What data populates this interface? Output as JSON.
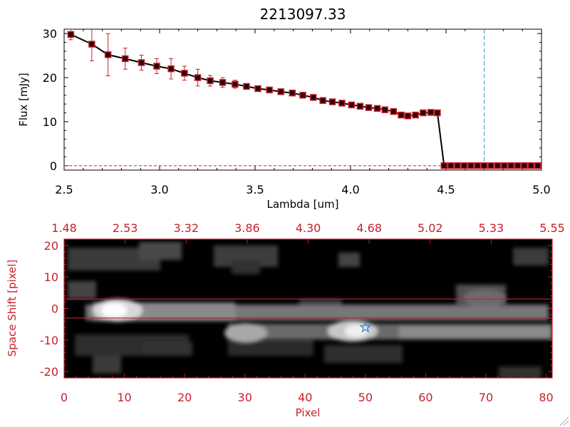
{
  "chart_data": [
    {
      "type": "line",
      "title": "2213097.33",
      "xlabel": "Lambda [um]",
      "ylabel": "Flux [mJy]",
      "xlim": [
        2.5,
        5.0
      ],
      "ylim": [
        -1,
        31
      ],
      "xticks": [
        "2.5",
        "3.0",
        "3.5",
        "4.0",
        "4.5",
        "5.0"
      ],
      "yticks": [
        "0",
        "10",
        "20",
        "30"
      ],
      "series": [
        {
          "name": "flux",
          "x": [
            2.535,
            2.645,
            2.73,
            2.82,
            2.905,
            2.985,
            3.06,
            3.13,
            3.2,
            3.265,
            3.33,
            3.395,
            3.455,
            3.515,
            3.575,
            3.635,
            3.695,
            3.75,
            3.805,
            3.855,
            3.905,
            3.955,
            4.005,
            4.05,
            4.095,
            4.14,
            4.18,
            4.225,
            4.265,
            4.3,
            4.34,
            4.38,
            4.42,
            4.455,
            4.49,
            4.525,
            4.56,
            4.595,
            4.63,
            4.665,
            4.7,
            4.735,
            4.77,
            4.805,
            4.84,
            4.875,
            4.91,
            4.945,
            4.98
          ],
          "y": [
            29.8,
            27.6,
            25.2,
            24.3,
            23.4,
            22.6,
            22.0,
            21.0,
            20.0,
            19.3,
            18.9,
            18.5,
            18.0,
            17.5,
            17.2,
            16.8,
            16.5,
            16.0,
            15.5,
            14.8,
            14.5,
            14.2,
            13.8,
            13.5,
            13.2,
            13.0,
            12.7,
            12.3,
            11.5,
            11.3,
            11.5,
            12.0,
            12.1,
            12.0,
            0,
            0,
            0,
            0,
            0,
            0,
            0,
            0,
            0,
            0,
            0,
            0,
            0,
            0,
            0
          ],
          "yerr": [
            1.2,
            3.8,
            4.8,
            2.4,
            1.7,
            1.7,
            2.3,
            1.6,
            1.9,
            1.2,
            1.1,
            0.9,
            0.6,
            0.5,
            0.4,
            0.4,
            0.4,
            0.3,
            0.3,
            0.3,
            0.3,
            0.3,
            0.3,
            0.3,
            0.3,
            0.3,
            0.3,
            0.3,
            0.3,
            0.3,
            0.3,
            0.3,
            0.3,
            0.3,
            0,
            0,
            0,
            0,
            0,
            0,
            0,
            0,
            0,
            0,
            0,
            0,
            0,
            0,
            0
          ]
        }
      ],
      "annotations": [
        {
          "type": "vline",
          "x": 4.7,
          "color": "#3b9fd6",
          "style": "dashed"
        },
        {
          "type": "hline",
          "y": 0,
          "color": "#c8202c",
          "style": "dashed"
        }
      ],
      "colors": {
        "line": "#000000",
        "marker": "#c8202c",
        "errorbar": "#c8202c"
      }
    },
    {
      "type": "heatmap",
      "title": "",
      "xlabel": "Pixel",
      "ylabel": "Space Shift [pixel]",
      "xlim": [
        0,
        81
      ],
      "ylim": [
        -22,
        22
      ],
      "xticks": [
        "0",
        "10",
        "20",
        "30",
        "40",
        "50",
        "60",
        "70",
        "80"
      ],
      "yticks": [
        "-20",
        "-10",
        "0",
        "10",
        "20"
      ],
      "top_axis_ticks": [
        "1.48",
        "2.53",
        "3.32",
        "3.86",
        "4.30",
        "4.68",
        "5.02",
        "5.33",
        "5.55"
      ],
      "extraction_window": [
        -3,
        3
      ],
      "star_marker": {
        "x": 50,
        "y": -6
      },
      "colors": {
        "axis": "#c8202c",
        "window": "#c8202c",
        "star": "#3b7fe0"
      }
    }
  ]
}
